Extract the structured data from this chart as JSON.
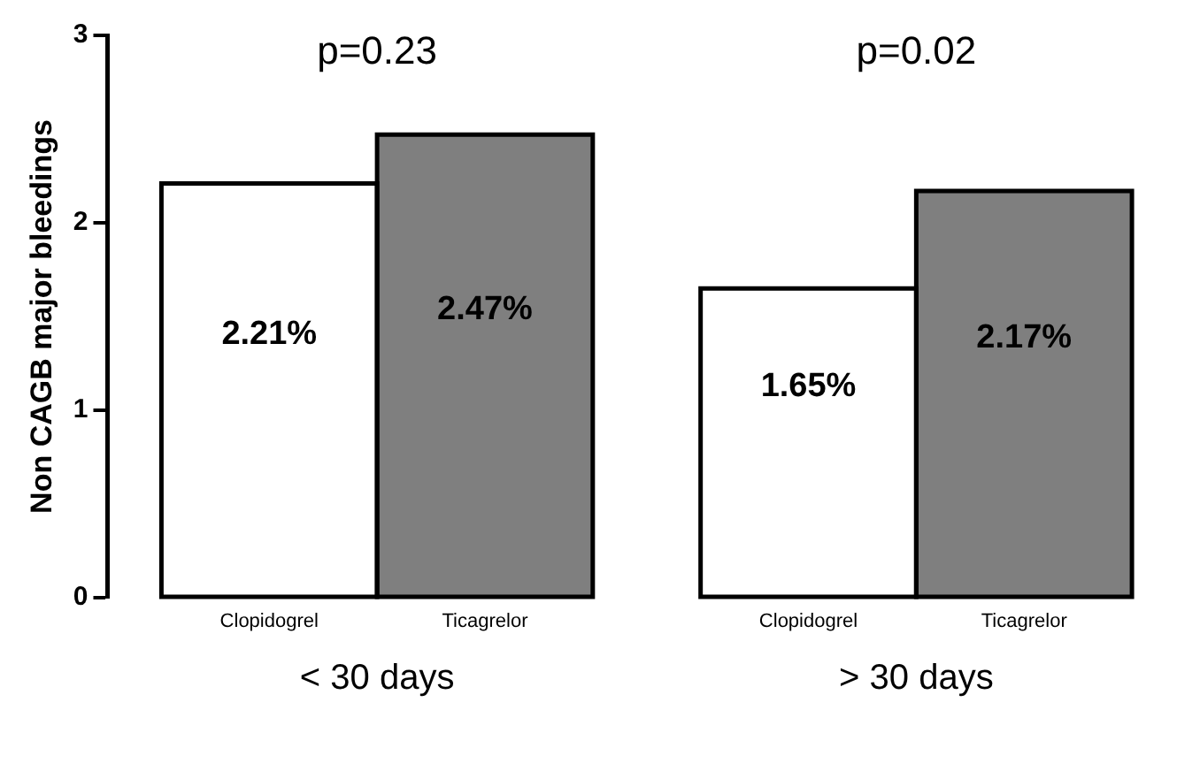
{
  "chart_data": {
    "type": "bar",
    "ylabel": "Non CAGB major bleedings",
    "categories": [
      "< 30 days",
      "> 30 days"
    ],
    "series": [
      {
        "name": "Clopidogrel",
        "color": "#ffffff",
        "values": [
          2.21,
          1.65
        ],
        "value_labels": [
          "2.21%",
          "1.65%"
        ]
      },
      {
        "name": "Ticagrelor",
        "color": "#7f7f7f",
        "values": [
          2.47,
          2.17
        ],
        "value_labels": [
          "2.47%",
          "2.17%"
        ]
      }
    ],
    "ylim": [
      0,
      3
    ],
    "yticks": [
      0,
      1,
      2,
      3
    ],
    "grid": false,
    "legend": false,
    "annotations": [
      "p=0.23",
      "p=0.02"
    ]
  }
}
